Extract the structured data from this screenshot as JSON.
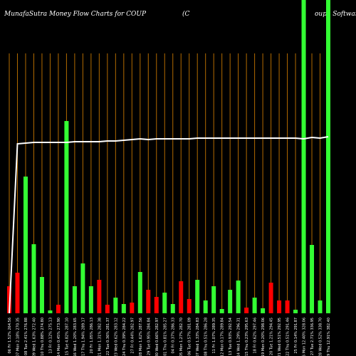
{
  "chart_data": {
    "type": "bar",
    "title": "MunafaSutra  Money Flow  Charts for COUP",
    "subtitle": "(C",
    "subtitle_tail": "oupa  Software",
    "categories": [
      "06 Fri 1.52% 264.56",
      "07 Mon 2.18% 270.35",
      "08 Tue 2.41% 276.88",
      "09 Wed 1.63% 272.40",
      "10 Thu 0.88% 274.80",
      "13 Fri 0.12% 275.13",
      "14 Mon 0.45% 273.90",
      "15 Tue 4.82% 287.10",
      "16 Wed 1.20% 283.65",
      "17 Thu 1.94% 289.17",
      "20 Fri 1.05% 286.13",
      "21 Mon 1.31% 282.38",
      "22 Tue 0.36% 281.37",
      "23 Wed 0.62% 283.12",
      "24 Thu 0.39% 284.22",
      "27 Fri 0.44% 282.97",
      "28 Mon 1.62% 287.56",
      "29 Tue 0.95% 284.84",
      "30 Wed 0.66% 282.97",
      "01 Thu 0.81% 285.27",
      "04 Fri 0.37% 286.33",
      "05 Mon 1.27% 282.70",
      "06 Tue 0.57% 281.09",
      "07 Wed 1.33% 284.83",
      "08 Thu 0.51% 286.28",
      "11 Fri 1.07% 289.35",
      "12 Mon 0.17% 289.84",
      "13 Tue 0.93% 292.54",
      "14 Wed 1.29% 296.31",
      "15 Thu 0.23% 295.63",
      "18 Fri 0.62% 297.46",
      "19 Mon 0.20% 298.06",
      "20 Tue 1.21% 294.45",
      "21 Wed 0.51% 292.95",
      "22 Thu 0.51% 291.46",
      "25 Fri 0.14% 291.87",
      "26 Mon 12.40% 328.06",
      "27 Tue 2.71% 336.95",
      "28 Wed 0.52% 338.70",
      "29 Thu 12.91% 382.40"
    ],
    "values": [
      38,
      57,
      192,
      97,
      51,
      4,
      12,
      270,
      38,
      70,
      38,
      47,
      12,
      22,
      13,
      15,
      58,
      33,
      23,
      29,
      13,
      45,
      20,
      47,
      18,
      38,
      6,
      33,
      46,
      8,
      22,
      7,
      43,
      18,
      18,
      5,
      440,
      96,
      18,
      440
    ],
    "colors": [
      "#ff0000",
      "#ff0000",
      "#33ff33",
      "#33ff33",
      "#33ff33",
      "#33ff33",
      "#ff0000",
      "#33ff33",
      "#33ff33",
      "#33ff33",
      "#33ff33",
      "#ff0000",
      "#ff0000",
      "#33ff33",
      "#33ff33",
      "#ff0000",
      "#33ff33",
      "#ff0000",
      "#ff0000",
      "#33ff33",
      "#33ff33",
      "#ff0000",
      "#ff0000",
      "#33ff33",
      "#33ff33",
      "#33ff33",
      "#33ff33",
      "#33ff33",
      "#33ff33",
      "#ff0000",
      "#33ff33",
      "#33ff33",
      "#ff0000",
      "#ff0000",
      "#ff0000",
      "#33ff33",
      "#33ff33",
      "#33ff33",
      "#33ff33",
      "#33ff33"
    ],
    "line": {
      "color": "#ffffff",
      "values": [
        0,
        238,
        239,
        240,
        240,
        240,
        240,
        240,
        241,
        241,
        241,
        241,
        242,
        242,
        243,
        244,
        245,
        244,
        245,
        245,
        245,
        245,
        245,
        246,
        246,
        246,
        246,
        246,
        246,
        246,
        246,
        246,
        246,
        246,
        246,
        246,
        245,
        247,
        246,
        248
      ]
    },
    "grid_color": "#b36b00",
    "ylim": [
      0,
      440
    ]
  }
}
